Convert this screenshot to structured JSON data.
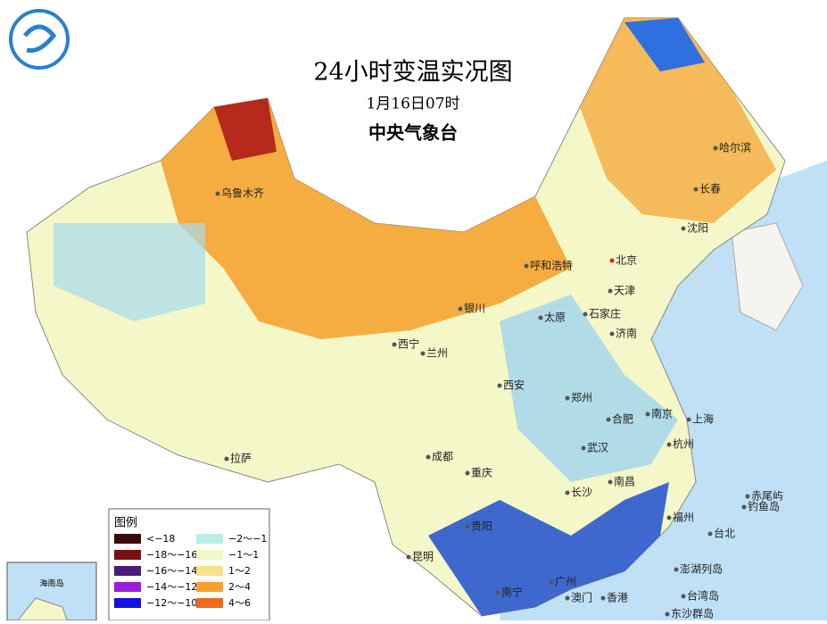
{
  "header": {
    "title": "24小时变温实况图",
    "date": "1月16日07时",
    "agency": "中央气象台"
  },
  "legend": {
    "title": "图例",
    "items": [
      {
        "label": "<−18",
        "color": "#3d0a0a"
      },
      {
        "label": "−18～−16",
        "color": "#7a1010"
      },
      {
        "label": "−16～−14",
        "color": "#4b1a7a"
      },
      {
        "label": "−14～−12",
        "color": "#9b1fd6"
      },
      {
        "label": "−12～−10",
        "color": "#1010e0"
      },
      {
        "label": "−2～−1",
        "color": "#b9f0e6"
      },
      {
        "label": "−1～1",
        "color": "#f4f7c8"
      },
      {
        "label": "1～2",
        "color": "#fbe08c"
      },
      {
        "label": "2～4",
        "color": "#f5a02a"
      },
      {
        "label": "4～6",
        "color": "#ec6a1a"
      }
    ]
  },
  "cities": [
    "乌鲁木齐",
    "呼和浩特",
    "北京",
    "哈尔滨",
    "长春",
    "沈阳",
    "天津",
    "石家庄",
    "太原",
    "济南",
    "银川",
    "西宁",
    "兰州",
    "西安",
    "郑州",
    "合肥",
    "南京",
    "上海",
    "杭州",
    "武汉",
    "成都",
    "重庆",
    "长沙",
    "南昌",
    "福州",
    "贵阳",
    "昆明",
    "南宁",
    "广州",
    "澳门",
    "香港",
    "台北",
    "拉萨",
    "赤尾屿",
    "钓鱼岛",
    "澎湖列岛",
    "台湾岛",
    "东沙群岛"
  ],
  "inset": {
    "label": "海南岛"
  }
}
